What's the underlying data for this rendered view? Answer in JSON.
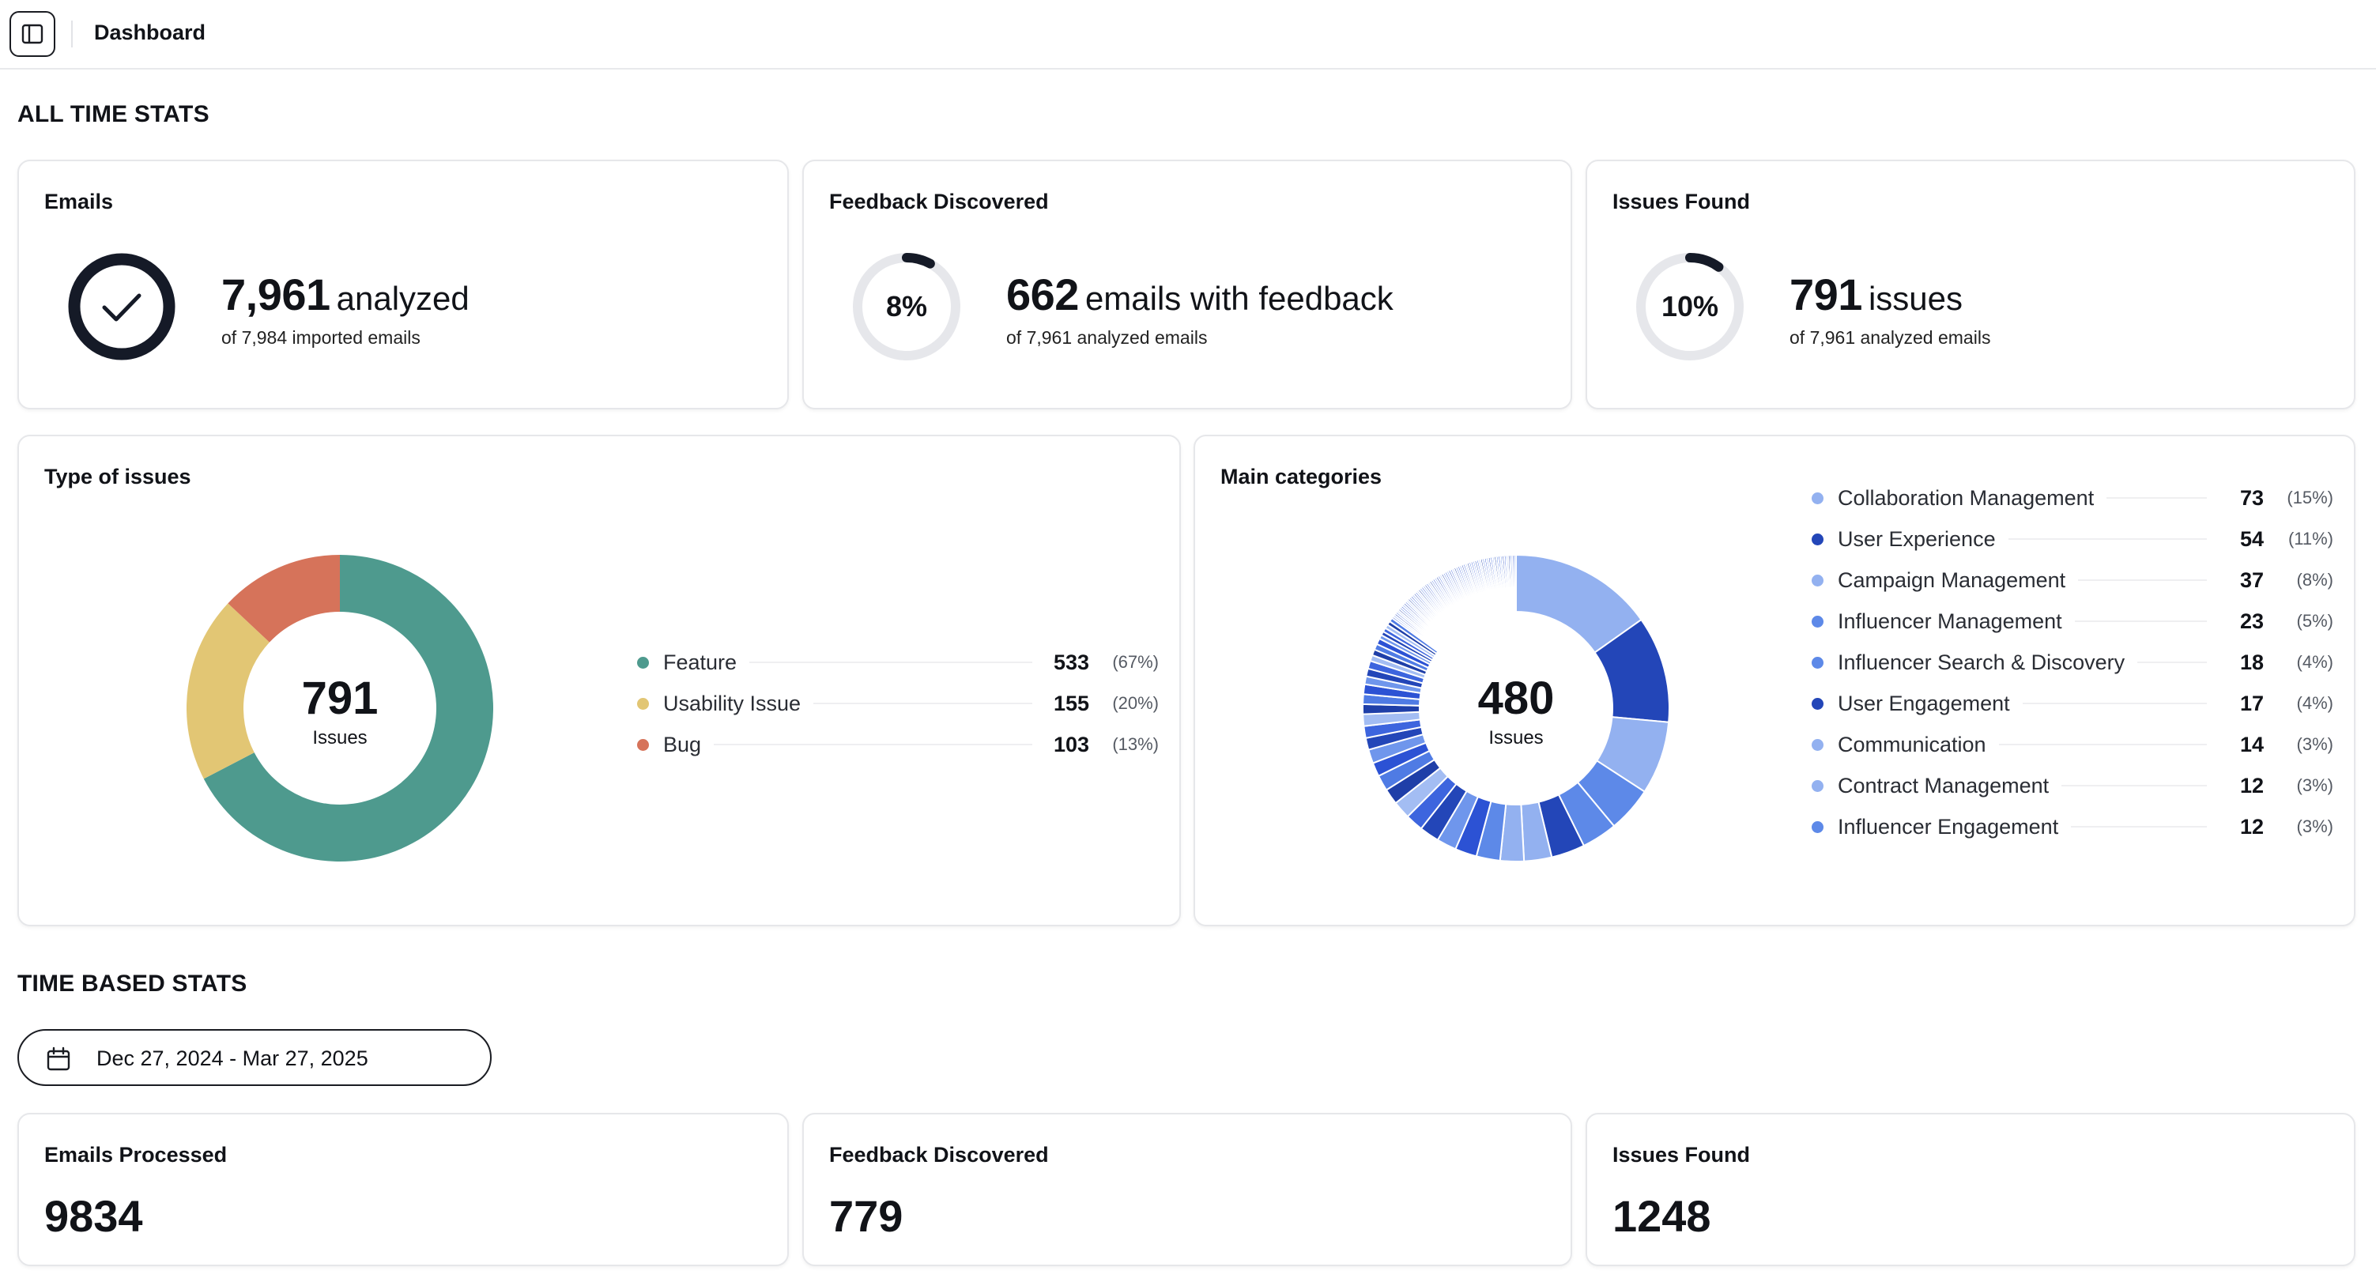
{
  "topbar": {
    "title": "Dashboard",
    "toggle_icon": "sidebar-toggle-icon"
  },
  "all_time": {
    "heading": "ALL TIME STATS",
    "emails": {
      "title": "Emails",
      "value": "7,961",
      "unit": "analyzed",
      "sub": "of 7,984 imported emails",
      "icon": "check-icon"
    },
    "feedback": {
      "title": "Feedback Discovered",
      "percent_label": "8%",
      "percent": 8,
      "value": "662",
      "unit": "emails with feedback",
      "sub": "of 7,961 analyzed emails"
    },
    "issues": {
      "title": "Issues Found",
      "percent_label": "10%",
      "percent": 10,
      "value": "791",
      "unit": "issues",
      "sub": "of 7,961 analyzed emails"
    }
  },
  "type_of_issues": {
    "title": "Type of issues",
    "center_value": "791",
    "center_label": "Issues",
    "items": [
      {
        "name": "Feature",
        "value": "533",
        "pct": "(67%)",
        "n": 533,
        "color": "#4e9a8e"
      },
      {
        "name": "Usability Issue",
        "value": "155",
        "pct": "(20%)",
        "n": 155,
        "color": "#e2c674"
      },
      {
        "name": "Bug",
        "value": "103",
        "pct": "(13%)",
        "n": 103,
        "color": "#d6735a"
      }
    ]
  },
  "main_categories": {
    "title": "Main categories",
    "center_value": "480",
    "center_label": "Issues",
    "items": [
      {
        "name": "Collaboration Management",
        "value": "73",
        "pct": "(15%)",
        "color": "#93b1f0"
      },
      {
        "name": "User Experience",
        "value": "54",
        "pct": "(11%)",
        "color": "#2346b8"
      },
      {
        "name": "Campaign Management",
        "value": "37",
        "pct": "(8%)",
        "color": "#93b1f0"
      },
      {
        "name": "Influencer Management",
        "value": "23",
        "pct": "(5%)",
        "color": "#5d89e8"
      },
      {
        "name": "Influencer Search & Discovery",
        "value": "18",
        "pct": "(4%)",
        "color": "#5d89e8"
      },
      {
        "name": "User Engagement",
        "value": "17",
        "pct": "(4%)",
        "color": "#2346b8"
      },
      {
        "name": "Communication",
        "value": "14",
        "pct": "(3%)",
        "color": "#93b1f0"
      },
      {
        "name": "Contract Management",
        "value": "12",
        "pct": "(3%)",
        "color": "#93b1f0"
      },
      {
        "name": "Influencer Engagement",
        "value": "12",
        "pct": "(3%)",
        "color": "#5d89e8"
      }
    ]
  },
  "time_based": {
    "heading": "TIME BASED STATS",
    "date_range": "Dec 27, 2024 - Mar 27, 2025",
    "emails_processed": {
      "title": "Emails Processed",
      "value": "9834"
    },
    "feedback": {
      "title": "Feedback Discovered",
      "value": "779"
    },
    "issues": {
      "title": "Issues Found",
      "value": "1248"
    }
  },
  "colors": {
    "teal": "#4e9a8e",
    "sand": "#e2c674",
    "coral": "#d6735a",
    "track": "#e6e7eb",
    "ink": "#151a27"
  }
}
